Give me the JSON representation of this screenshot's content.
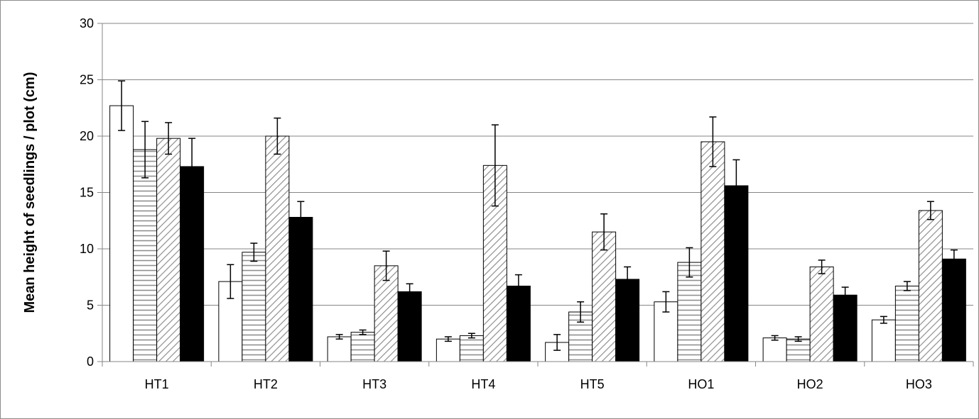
{
  "chart_data": {
    "type": "bar",
    "title": "",
    "xlabel": "",
    "ylabel": "Mean height of seedlings / plot (cm)",
    "ylim": [
      0,
      30
    ],
    "yticks": [
      0,
      5,
      10,
      15,
      20,
      25,
      30
    ],
    "grid": true,
    "legend": "none",
    "categories": [
      "HT1",
      "HT2",
      "HT3",
      "HT4",
      "HT5",
      "HO1",
      "HO2",
      "HO3"
    ],
    "series": [
      {
        "fill": "white",
        "values": [
          22.7,
          7.1,
          2.2,
          2.0,
          1.7,
          5.3,
          2.1,
          3.7
        ],
        "errors": [
          2.2,
          1.5,
          0.2,
          0.2,
          0.7,
          0.9,
          0.2,
          0.3
        ]
      },
      {
        "fill": "horizontal-lines",
        "values": [
          18.8,
          9.7,
          2.6,
          2.3,
          4.4,
          8.8,
          2.0,
          6.7
        ],
        "errors": [
          2.5,
          0.8,
          0.2,
          0.2,
          0.9,
          1.3,
          0.2,
          0.4
        ]
      },
      {
        "fill": "diagonal-lines",
        "values": [
          19.8,
          20.0,
          8.5,
          17.4,
          11.5,
          19.5,
          8.4,
          13.4
        ],
        "errors": [
          1.4,
          1.6,
          1.3,
          3.6,
          1.6,
          2.2,
          0.6,
          0.8
        ]
      },
      {
        "fill": "black",
        "values": [
          17.3,
          12.8,
          6.2,
          6.7,
          7.3,
          15.6,
          5.9,
          9.1
        ],
        "errors": [
          2.5,
          1.4,
          0.7,
          1.0,
          1.1,
          2.3,
          0.7,
          0.8
        ]
      }
    ],
    "colors": {
      "axis": "#868686",
      "grid": "#868686",
      "bar_outline": "#000000",
      "hatch": "#999999",
      "error_bar": "#000000"
    }
  }
}
